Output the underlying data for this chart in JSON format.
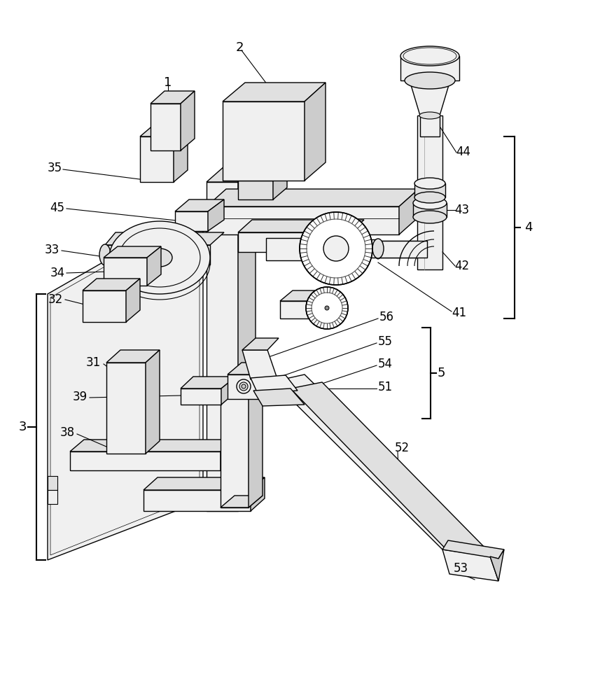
{
  "bg_color": "#ffffff",
  "lc": "#000000",
  "lw": 1.0,
  "gray1": "#f0f0f0",
  "gray2": "#e0e0e0",
  "gray3": "#cccccc",
  "gray4": "#aaaaaa",
  "gear_dark": "#444444",
  "gear_mid": "#888888"
}
